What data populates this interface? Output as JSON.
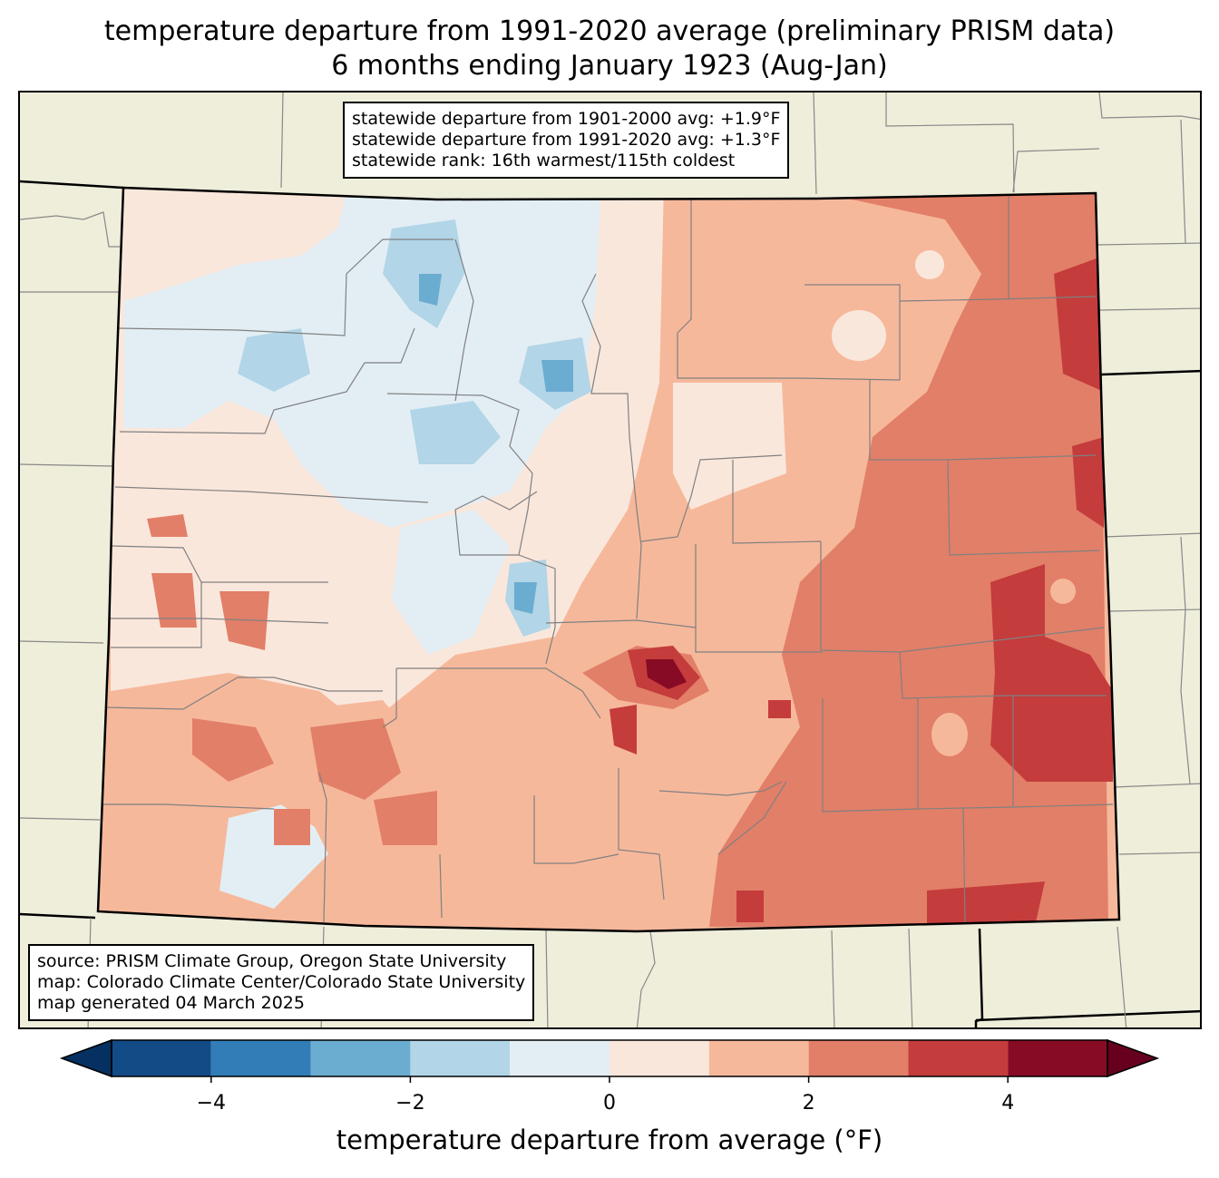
{
  "title": {
    "line1": "temperature departure from 1991-2020 average (preliminary PRISM data)",
    "line2": "6 months ending January 1923 (Aug-Jan)"
  },
  "stats": {
    "line1": "statewide departure from 1901-2000 avg: +1.9°F",
    "line2": "statewide departure from 1991-2020 avg: +1.3°F",
    "line3": "statewide rank: 16th warmest/115th coldest"
  },
  "source": {
    "line1": "source: PRISM Climate Group, Oregon State University",
    "line2": "map: Colorado Climate Center/Colorado State University",
    "line3": "map generated 04 March 2025"
  },
  "colorbar": {
    "label": "temperature departure from average (°F)",
    "ticks": [
      "−4",
      "−2",
      "0",
      "2",
      "4"
    ],
    "bins": [
      {
        "from": -5,
        "to": -4,
        "color": "#134b87"
      },
      {
        "from": -4,
        "to": -3,
        "color": "#327db7"
      },
      {
        "from": -3,
        "to": -2,
        "color": "#6bacd1"
      },
      {
        "from": -2,
        "to": -1,
        "color": "#b2d5e7"
      },
      {
        "from": -1,
        "to": 0,
        "color": "#e3eef4"
      },
      {
        "from": 0,
        "to": 1,
        "color": "#fae7dc"
      },
      {
        "from": 1,
        "to": 2,
        "color": "#f6b89b"
      },
      {
        "from": 2,
        "to": 3,
        "color": "#e27f68"
      },
      {
        "from": 3,
        "to": 4,
        "color": "#c43c3c"
      },
      {
        "from": 4,
        "to": 5,
        "color": "#870b24"
      }
    ],
    "under_color": "#053061",
    "over_color": "#67001f"
  },
  "colors": {
    "land_background": "#efeedb",
    "county_lines": "#808080",
    "state_border": "#000000"
  }
}
